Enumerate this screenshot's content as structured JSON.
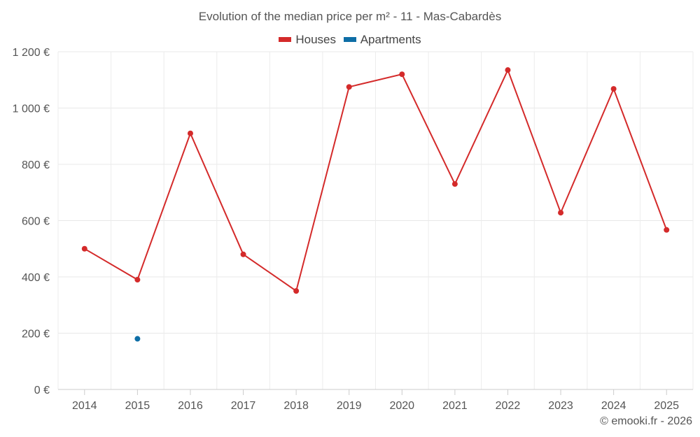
{
  "chart_data": {
    "type": "line",
    "title": "Evolution of the median price per m² - 11 - Mas-Cabardès",
    "categories": [
      "2014",
      "2015",
      "2016",
      "2017",
      "2018",
      "2019",
      "2020",
      "2021",
      "2022",
      "2023",
      "2024",
      "2025"
    ],
    "series": [
      {
        "name": "Houses",
        "color": "#d42a2a",
        "values": [
          500,
          390,
          910,
          480,
          350,
          1075,
          1120,
          730,
          1135,
          628,
          1068,
          567
        ]
      },
      {
        "name": "Apartments",
        "color": "#0e6ea6",
        "values": [
          null,
          180,
          null,
          null,
          null,
          null,
          null,
          null,
          null,
          null,
          null,
          null
        ]
      }
    ],
    "ylim": [
      0,
      1200
    ],
    "yticks": [
      0,
      200,
      400,
      600,
      800,
      1000,
      1200
    ],
    "ytick_labels": [
      "0 €",
      "200 €",
      "400 €",
      "600 €",
      "800 €",
      "1 000 €",
      "1 200 €"
    ],
    "xlabel": "",
    "ylabel": "",
    "grid": true,
    "legend_position": "top-center"
  },
  "credit": "© emooki.fr - 2026"
}
